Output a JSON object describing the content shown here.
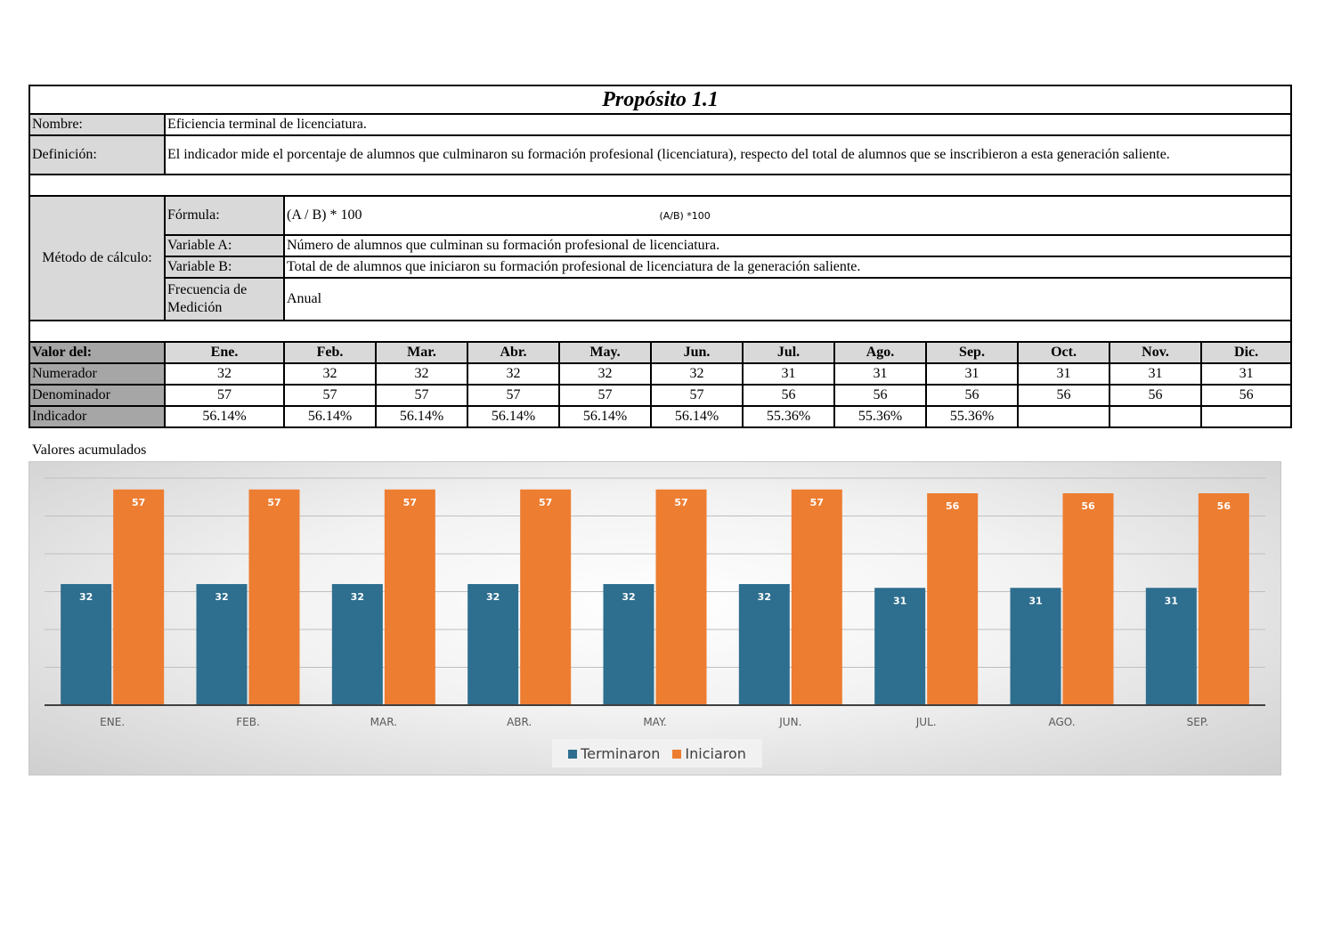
{
  "title": "Propósito 1.1",
  "nombre_label": "Nombre:",
  "nombre_value": "Eficiencia terminal de licenciatura.",
  "definicion_label": "Definición:",
  "definicion_value": "El indicador mide el porcentaje de alumnos que culminaron su formación profesional (licenciatura), respecto del total de alumnos que se inscribieron a esta generación saliente.",
  "metodo_label": "Método de cálculo:",
  "formula_label": "Fórmula:",
  "formula_value": "(A / B) * 100",
  "formula_math": "(A/B) *100",
  "var_a_label": "Variable A:",
  "var_a_value": "Número de alumnos que culminan su formación profesional de licenciatura.",
  "var_b_label": "Variable B:",
  "var_b_value": "Total de de alumnos que iniciaron su formación profesional de licenciatura de la generación saliente.",
  "frecuencia_label": "Frecuencia de Medición",
  "frecuencia_value": "Anual",
  "valor_label": "Valor del:",
  "months": [
    "Ene.",
    "Feb.",
    "Mar.",
    "Abr.",
    "May.",
    "Jun.",
    "Jul.",
    "Ago.",
    "Sep.",
    "Oct.",
    "Nov.",
    "Dic."
  ],
  "numerador_label": "Numerador",
  "numerador": [
    "32",
    "32",
    "32",
    "32",
    "32",
    "32",
    "31",
    "31",
    "31",
    "31",
    "31",
    "31"
  ],
  "denominador_label": "Denominador",
  "denominador": [
    "57",
    "57",
    "57",
    "57",
    "57",
    "57",
    "56",
    "56",
    "56",
    "56",
    "56",
    "56"
  ],
  "indicador_label": "Indicador",
  "indicador": [
    "56.14%",
    "56.14%",
    "56.14%",
    "56.14%",
    "56.14%",
    "56.14%",
    "55.36%",
    "55.36%",
    "55.36%",
    "",
    "",
    ""
  ],
  "acumulados_label": "Valores acumulados",
  "chart_data": {
    "type": "bar",
    "categories": [
      "ENE.",
      "FEB.",
      "MAR.",
      "ABR.",
      "MAY.",
      "JUN.",
      "JUL.",
      "AGO.",
      "SEP."
    ],
    "series": [
      {
        "name": "Terminaron",
        "values": [
          32,
          32,
          32,
          32,
          32,
          32,
          31,
          31,
          31
        ],
        "color": "#2e6e8e"
      },
      {
        "name": "Iniciaron",
        "values": [
          57,
          57,
          57,
          57,
          57,
          57,
          56,
          56,
          56
        ],
        "color": "#ed7d31"
      }
    ],
    "ylim": [
      0,
      60
    ],
    "grid": true,
    "legend": "bottom",
    "data_labels": true
  }
}
